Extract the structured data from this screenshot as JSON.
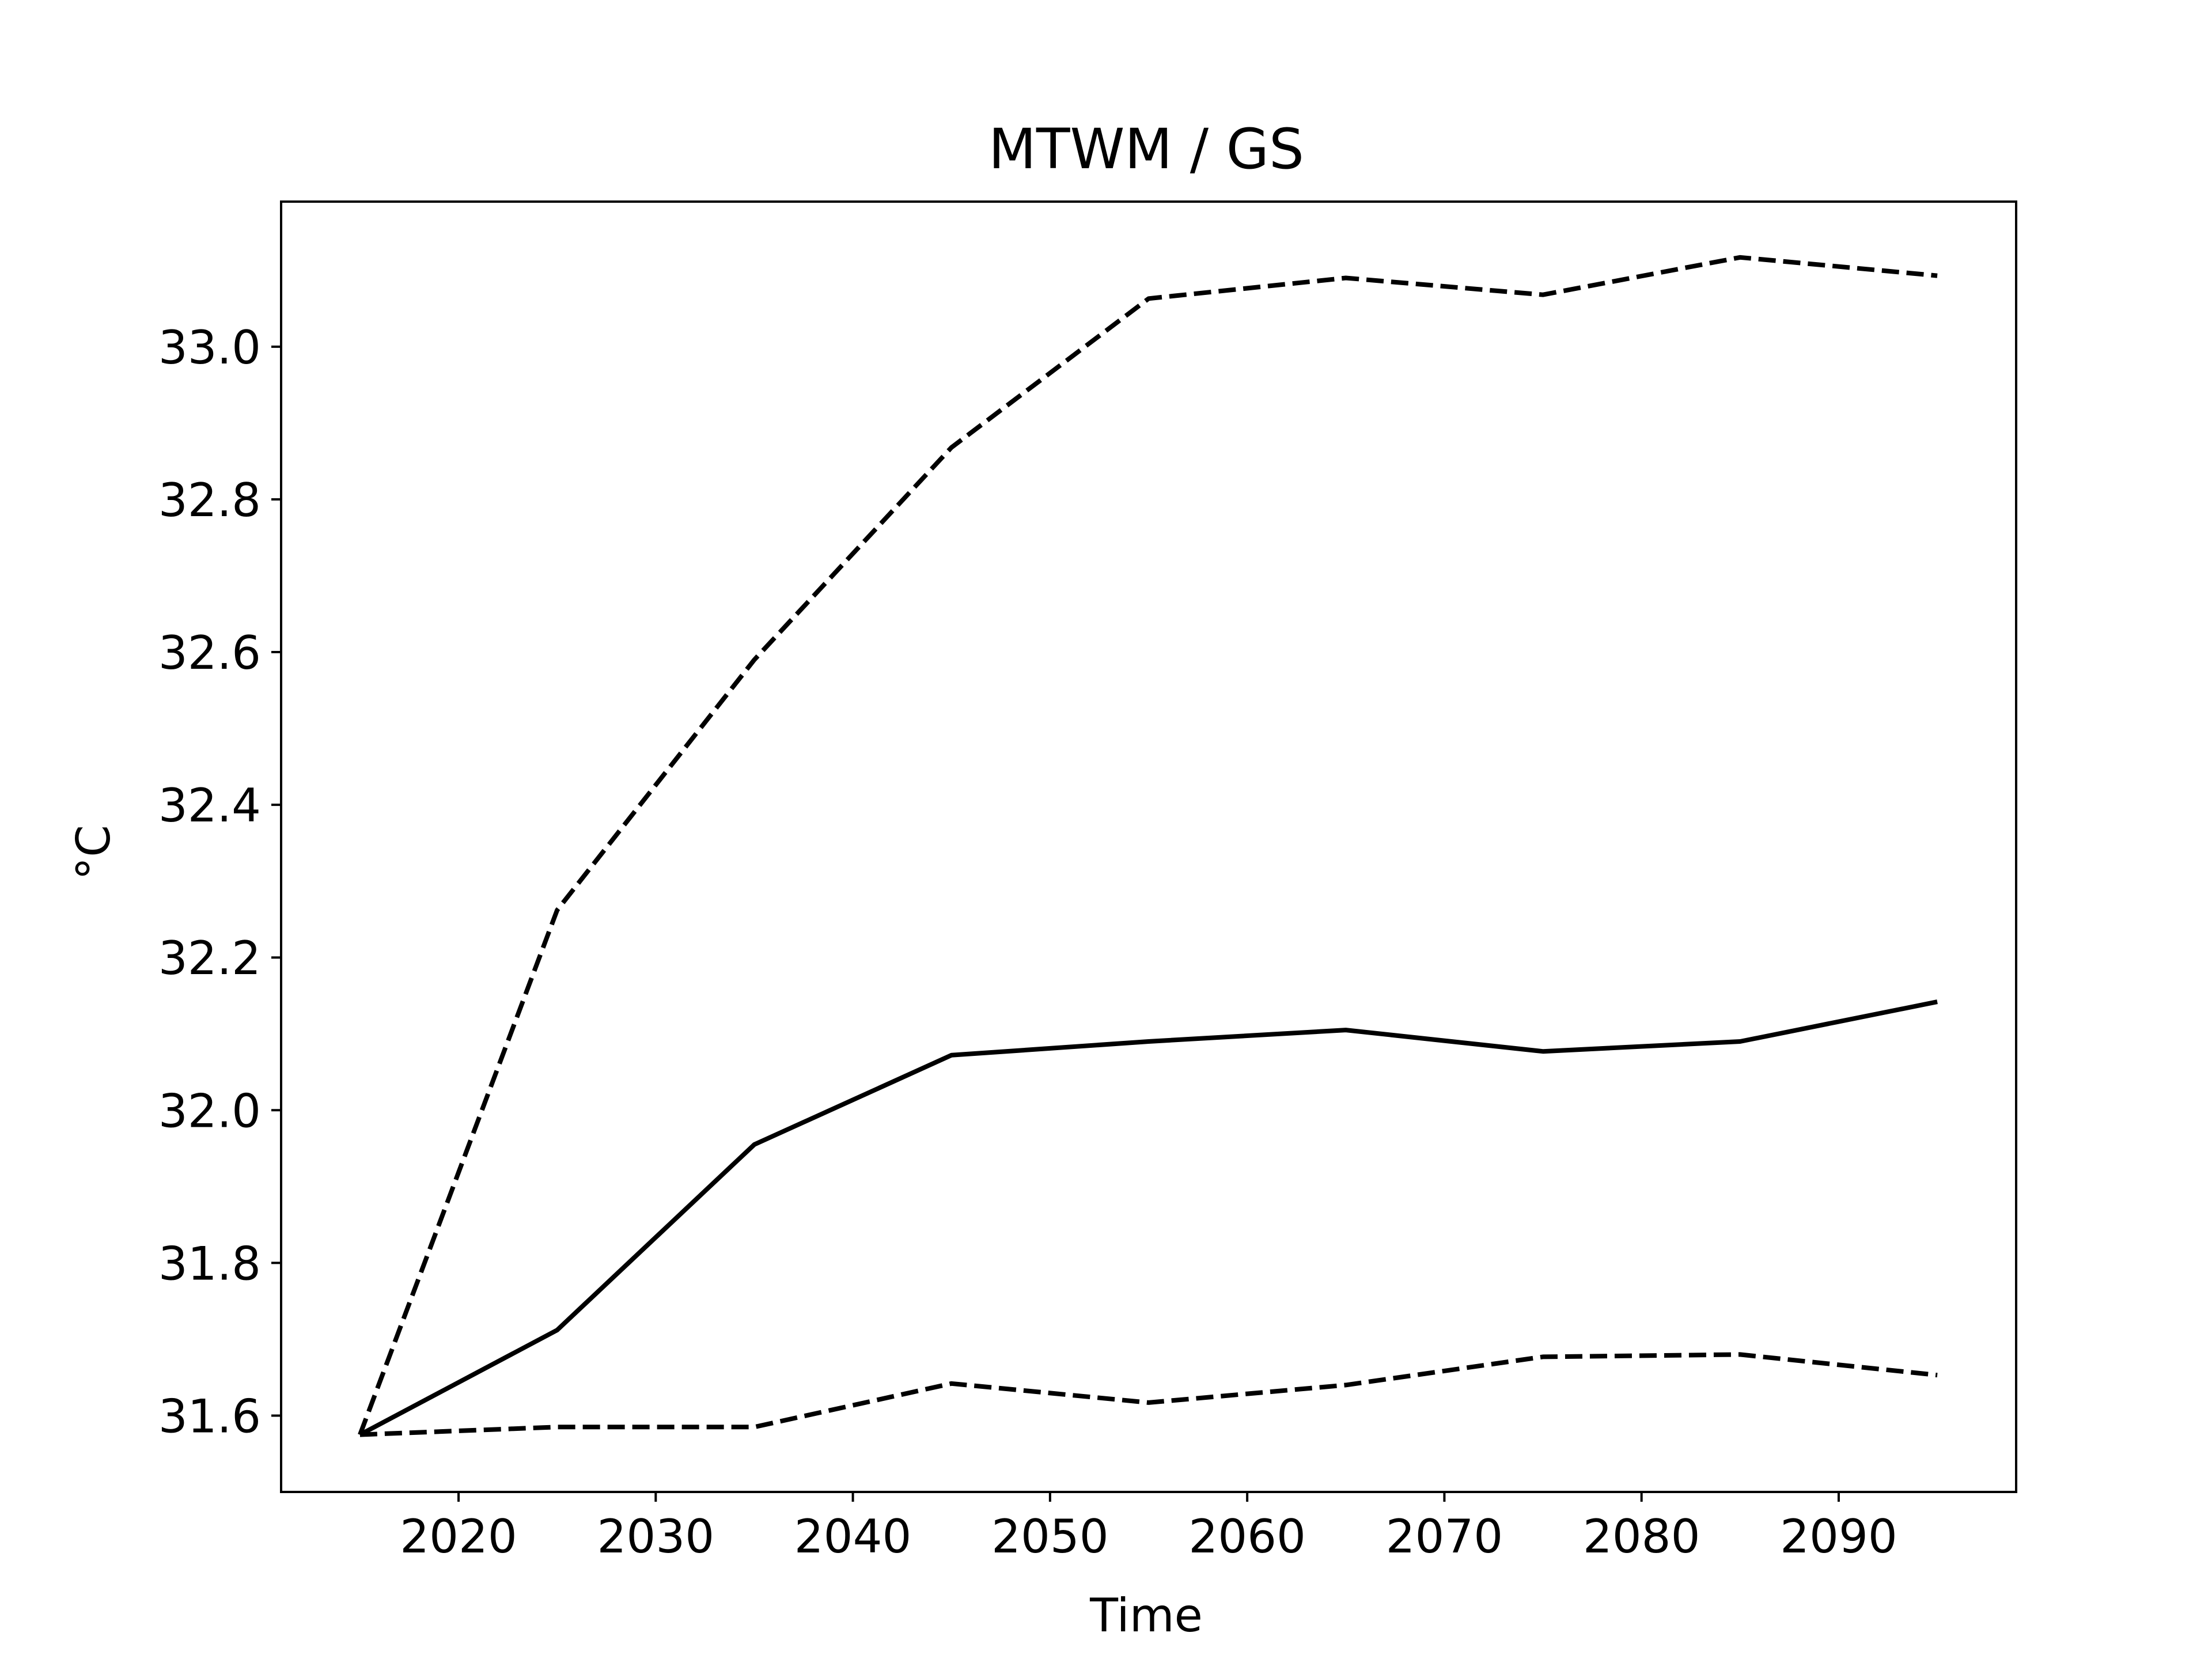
{
  "chart_data": {
    "type": "line",
    "title": "MTWM / GS",
    "xlabel": "Time",
    "ylabel": "°C",
    "xlim": [
      2011,
      2099
    ],
    "ylim": [
      31.5,
      33.19
    ],
    "x_ticks": [
      2020,
      2030,
      2040,
      2050,
      2060,
      2070,
      2080,
      2090
    ],
    "y_ticks": [
      31.6,
      31.8,
      32.0,
      32.2,
      32.4,
      32.6,
      32.8,
      33.0
    ],
    "y_tick_labels": [
      "31.6",
      "31.8",
      "32.0",
      "32.2",
      "32.4",
      "32.6",
      "32.8",
      "33.0"
    ],
    "grid": false,
    "x": [
      2015,
      2025,
      2035,
      2045,
      2055,
      2065,
      2075,
      2085,
      2095
    ],
    "series": [
      {
        "style": "solid",
        "color": "#000000",
        "values": [
          31.575,
          31.712,
          31.955,
          32.072,
          32.09,
          32.105,
          32.077,
          32.09,
          32.142
        ]
      },
      {
        "style": "dashed",
        "color": "#000000",
        "values": [
          31.575,
          32.262,
          32.59,
          32.868,
          33.063,
          33.09,
          33.068,
          33.117,
          33.093
        ]
      },
      {
        "style": "dashed",
        "color": "#000000",
        "values": [
          31.575,
          31.585,
          31.585,
          31.642,
          31.617,
          31.64,
          31.677,
          31.68,
          31.653
        ]
      }
    ]
  }
}
